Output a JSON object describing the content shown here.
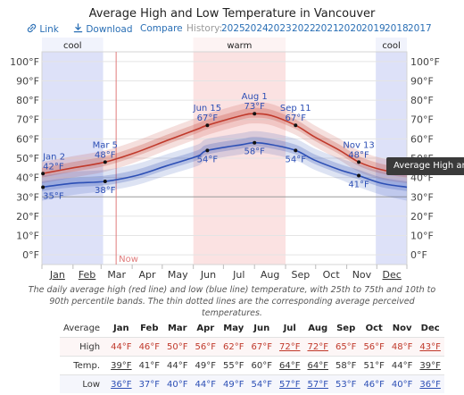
{
  "title": "Average High and Low Temperature in Vancouver",
  "toolbar": {
    "link_label": "Link",
    "download_label": "Download",
    "compare_label": "Compare",
    "history_label": "History:",
    "years": [
      "2025",
      "2024",
      "2023",
      "2022",
      "2021",
      "2020",
      "2019",
      "2018",
      "2017"
    ]
  },
  "colors": {
    "high": "#c0392b",
    "low": "#2c4fb5",
    "warm_band": "#f9d8d8",
    "cool_band": "#d9def7",
    "now_line": "#e07b7b"
  },
  "chart_data": {
    "type": "line",
    "title": "Average High and Low Temperature in Vancouver",
    "x_axis": {
      "type": "months",
      "tick_labels": [
        "Jan",
        "Feb",
        "Mar",
        "Apr",
        "May",
        "Jun",
        "Jul",
        "Aug",
        "Sep",
        "Oct",
        "Nov",
        "Dec"
      ],
      "underlined": [
        "Jan",
        "Feb",
        "Dec"
      ]
    },
    "y_axis": {
      "unit": "°F",
      "range": [
        -5,
        105
      ],
      "tick_labels": [
        "0°F",
        "10°F",
        "20°F",
        "30°F",
        "40°F",
        "50°F",
        "60°F",
        "70°F",
        "80°F",
        "90°F",
        "100°F"
      ],
      "tick_values": [
        0,
        10,
        20,
        30,
        40,
        50,
        60,
        70,
        80,
        90,
        100
      ]
    },
    "grid": true,
    "seasons": [
      {
        "label": "cool",
        "start": "Jan 1",
        "end": "Mar 3"
      },
      {
        "label": "warm",
        "start": "Jun 1",
        "end": "Sep 1"
      },
      {
        "label": "cool",
        "start": "Nov 30",
        "end": "Dec 31"
      }
    ],
    "now_marker": {
      "label": "Now",
      "date": "Mar 16"
    },
    "series": [
      {
        "name": "High",
        "day_of_year": [
          1,
          32,
          64,
          95,
          125,
          156,
          166,
          200,
          213,
          230,
          254,
          273,
          298,
          317,
          340,
          365
        ],
        "values": [
          42,
          45,
          48,
          53,
          59,
          65,
          67,
          72,
          73,
          72,
          67,
          61,
          54,
          48,
          44,
          42
        ],
        "p25": [
          40,
          43,
          46,
          51,
          57,
          63,
          65,
          70,
          71,
          70,
          65,
          59,
          52,
          46,
          42,
          40
        ],
        "p75": [
          45,
          48,
          51,
          56,
          62,
          68,
          70,
          75,
          76,
          75,
          70,
          64,
          57,
          51,
          47,
          45
        ],
        "p10": [
          37,
          40,
          43,
          48,
          54,
          60,
          62,
          67,
          68,
          67,
          62,
          56,
          49,
          43,
          39,
          37
        ],
        "p90": [
          48,
          51,
          54,
          59,
          65,
          71,
          73,
          78,
          79,
          78,
          73,
          67,
          60,
          54,
          50,
          48
        ]
      },
      {
        "name": "Low",
        "day_of_year": [
          1,
          32,
          64,
          95,
          125,
          156,
          166,
          200,
          213,
          230,
          254,
          273,
          298,
          317,
          340,
          365
        ],
        "values": [
          35,
          37,
          38,
          41,
          46,
          51,
          54,
          57,
          58,
          57,
          54,
          49,
          44,
          41,
          37,
          35
        ],
        "p25": [
          33,
          35,
          36,
          39,
          44,
          49,
          52,
          55,
          56,
          55,
          52,
          47,
          42,
          39,
          35,
          33
        ],
        "p75": [
          38,
          40,
          41,
          44,
          49,
          54,
          57,
          60,
          61,
          60,
          57,
          52,
          47,
          44,
          40,
          38
        ],
        "p10": [
          28,
          31,
          33,
          36,
          41,
          46,
          49,
          52,
          53,
          52,
          49,
          44,
          39,
          35,
          31,
          28
        ],
        "p90": [
          41,
          43,
          44,
          47,
          52,
          57,
          60,
          63,
          64,
          63,
          60,
          55,
          50,
          47,
          43,
          41
        ]
      }
    ],
    "annotations": [
      {
        "date": "Jan 2",
        "day_of_year": 2,
        "high": "42°F",
        "low": "35°F"
      },
      {
        "date": "Mar 5",
        "day_of_year": 64,
        "high": "48°F",
        "low": "38°F"
      },
      {
        "date": "Jun 15",
        "day_of_year": 166,
        "high": "67°F",
        "low": "54°F"
      },
      {
        "date": "Aug 1",
        "day_of_year": 213,
        "high": "73°F",
        "low": "58°F"
      },
      {
        "date": "Sep 11",
        "day_of_year": 254,
        "high": "67°F",
        "low": "54°F"
      },
      {
        "date": "Nov 13",
        "day_of_year": 317,
        "high": "48°F",
        "low": "41°F"
      }
    ]
  },
  "tooltip_text": "Average High and L",
  "caption": "The daily average high (red line) and low (blue line) temperature, with 25th to 75th and 10th to 90th percentile bands. The thin dotted lines are the corresponding average perceived temperatures.",
  "table": {
    "header_label": "Average",
    "months": [
      "Jan",
      "Feb",
      "Mar",
      "Apr",
      "May",
      "Jun",
      "Jul",
      "Aug",
      "Sep",
      "Oct",
      "Nov",
      "Dec"
    ],
    "rows": [
      {
        "label": "High",
        "values": [
          "44°F",
          "46°F",
          "50°F",
          "56°F",
          "62°F",
          "67°F",
          "72°F",
          "72°F",
          "65°F",
          "56°F",
          "48°F",
          "43°F"
        ],
        "underlined": [
          6,
          7,
          11
        ]
      },
      {
        "label": "Temp.",
        "values": [
          "39°F",
          "41°F",
          "44°F",
          "49°F",
          "55°F",
          "60°F",
          "64°F",
          "64°F",
          "58°F",
          "51°F",
          "44°F",
          "39°F"
        ],
        "underlined": [
          0,
          6,
          7,
          11
        ]
      },
      {
        "label": "Low",
        "values": [
          "36°F",
          "37°F",
          "40°F",
          "44°F",
          "49°F",
          "54°F",
          "57°F",
          "57°F",
          "53°F",
          "46°F",
          "40°F",
          "36°F"
        ],
        "underlined": [
          0,
          6,
          7,
          11
        ]
      }
    ]
  }
}
